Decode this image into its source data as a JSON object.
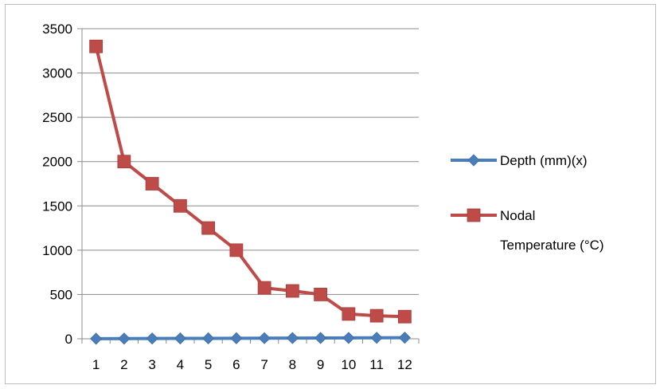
{
  "chart_data": {
    "type": "line",
    "title": "",
    "xlabel": "",
    "ylabel": "",
    "categories": [
      "1",
      "2",
      "3",
      "4",
      "5",
      "6",
      "7",
      "8",
      "9",
      "10",
      "11",
      "12"
    ],
    "ylim": [
      0,
      3500
    ],
    "yticks": [
      "0",
      "500",
      "1000",
      "1500",
      "2000",
      "2500",
      "3000",
      "3500"
    ],
    "grid": true,
    "legend_position": "right",
    "series": [
      {
        "name": "Depth (mm)(x)",
        "color": "#4a7ebb",
        "marker": "diamond",
        "values": [
          1,
          2,
          3,
          4,
          5,
          6,
          7,
          8,
          9,
          10,
          11,
          12
        ]
      },
      {
        "name": "Nodal Temperature (°C)",
        "name_lines": [
          "Nodal",
          "Temperature (°C)"
        ],
        "color": "#be4b48",
        "marker": "square",
        "values": [
          3300,
          2000,
          1750,
          1500,
          1250,
          1000,
          575,
          540,
          500,
          280,
          260,
          250
        ]
      }
    ]
  }
}
